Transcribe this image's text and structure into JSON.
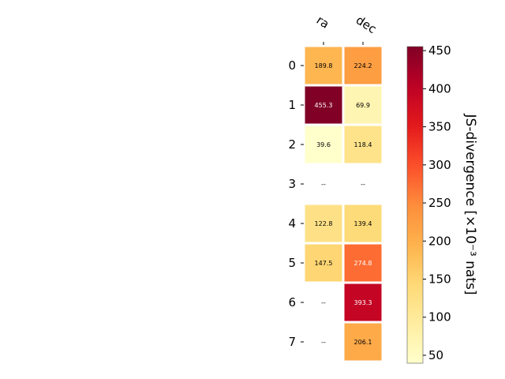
{
  "chart_data": {
    "type": "heatmap",
    "columns": [
      "ra",
      "dec"
    ],
    "rows": [
      "0",
      "1",
      "2",
      "3",
      "4",
      "5",
      "6",
      "7"
    ],
    "values": [
      [
        189.8,
        224.2
      ],
      [
        455.3,
        69.9
      ],
      [
        39.6,
        118.4
      ],
      [
        null,
        null
      ],
      [
        122.8,
        139.4
      ],
      [
        147.5,
        274.8
      ],
      [
        null,
        393.3
      ],
      [
        null,
        206.1
      ]
    ],
    "cell_labels": [
      [
        "189.8",
        "224.2"
      ],
      [
        "455.3",
        "69.9"
      ],
      [
        "39.6",
        "118.4"
      ],
      [
        "--",
        "--"
      ],
      [
        "122.8",
        "139.4"
      ],
      [
        "147.5",
        "274.8"
      ],
      [
        "--",
        "393.3"
      ],
      [
        "--",
        "206.1"
      ]
    ],
    "colorbar": {
      "label": "JS-divergence [×10⁻³ nats]",
      "range": [
        39.6,
        455.3
      ],
      "ticks": [
        50,
        100,
        150,
        200,
        250,
        300,
        350,
        400,
        450
      ],
      "colormap": "YlOrRd"
    }
  }
}
